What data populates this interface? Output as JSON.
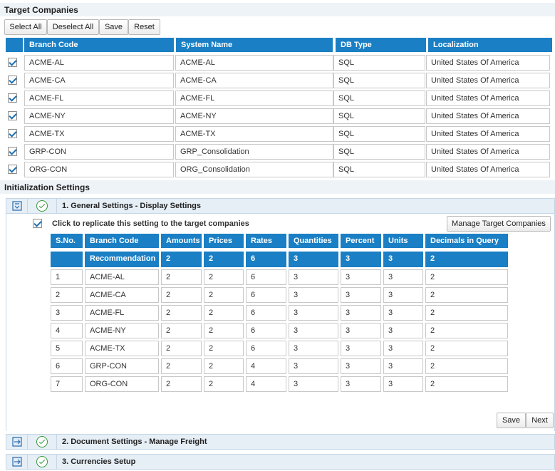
{
  "target_companies": {
    "title": "Target Companies",
    "buttons": {
      "select_all": "Select All",
      "deselect_all": "Deselect All",
      "save": "Save",
      "reset": "Reset"
    },
    "columns": [
      "Branch Code",
      "System Name",
      "DB Type",
      "Localization"
    ],
    "rows": [
      {
        "checked": true,
        "branch": "ACME-AL",
        "system": "ACME-AL",
        "db": "SQL",
        "loc": "United States Of America"
      },
      {
        "checked": true,
        "branch": "ACME-CA",
        "system": "ACME-CA",
        "db": "SQL",
        "loc": "United States Of America"
      },
      {
        "checked": true,
        "branch": "ACME-FL",
        "system": "ACME-FL",
        "db": "SQL",
        "loc": "United States Of America"
      },
      {
        "checked": true,
        "branch": "ACME-NY",
        "system": "ACME-NY",
        "db": "SQL",
        "loc": "United States Of America"
      },
      {
        "checked": true,
        "branch": "ACME-TX",
        "system": "ACME-TX",
        "db": "SQL",
        "loc": "United States Of America"
      },
      {
        "checked": true,
        "branch": "GRP-CON",
        "system": "GRP_Consolidation",
        "db": "SQL",
        "loc": "United States Of America"
      },
      {
        "checked": true,
        "branch": "ORG-CON",
        "system": "ORG_Consolidation",
        "db": "SQL",
        "loc": "United States Of America"
      }
    ]
  },
  "init_settings": {
    "title": "Initialization Settings",
    "sections": [
      {
        "title": "1. General Settings - Display Settings",
        "expanded": true,
        "icon": "collapse-icon"
      },
      {
        "title": "2. Document Settings - Manage Freight",
        "expanded": false,
        "icon": "expand-icon"
      },
      {
        "title": "3. Currencies Setup",
        "expanded": false,
        "icon": "expand-icon"
      }
    ],
    "replicate_label": "Click to replicate this setting to the target companies",
    "manage_button": "Manage Target Companies",
    "grid": {
      "columns": [
        "S.No.",
        "Branch Code",
        "Amounts",
        "Prices",
        "Rates",
        "Quantities",
        "Percent",
        "Units",
        "Decimals in Query"
      ],
      "recommendation": [
        "",
        "Recommendation",
        "2",
        "2",
        "6",
        "3",
        "3",
        "3",
        "2"
      ],
      "rows": [
        [
          "1",
          "ACME-AL",
          "2",
          "2",
          "6",
          "3",
          "3",
          "3",
          "2"
        ],
        [
          "2",
          "ACME-CA",
          "2",
          "2",
          "6",
          "3",
          "3",
          "3",
          "2"
        ],
        [
          "3",
          "ACME-FL",
          "2",
          "2",
          "6",
          "3",
          "3",
          "3",
          "2"
        ],
        [
          "4",
          "ACME-NY",
          "2",
          "2",
          "6",
          "3",
          "3",
          "3",
          "2"
        ],
        [
          "5",
          "ACME-TX",
          "2",
          "2",
          "6",
          "3",
          "3",
          "3",
          "2"
        ],
        [
          "6",
          "GRP-CON",
          "2",
          "2",
          "4",
          "3",
          "3",
          "3",
          "2"
        ],
        [
          "7",
          "ORG-CON",
          "2",
          "2",
          "4",
          "3",
          "3",
          "3",
          "2"
        ]
      ]
    },
    "footer_buttons": {
      "save": "Save",
      "next": "Next"
    }
  },
  "colors": {
    "header_blue": "#1a7fc4",
    "section_bg": "#e6eef6",
    "ok_green": "#3a9a3a"
  }
}
